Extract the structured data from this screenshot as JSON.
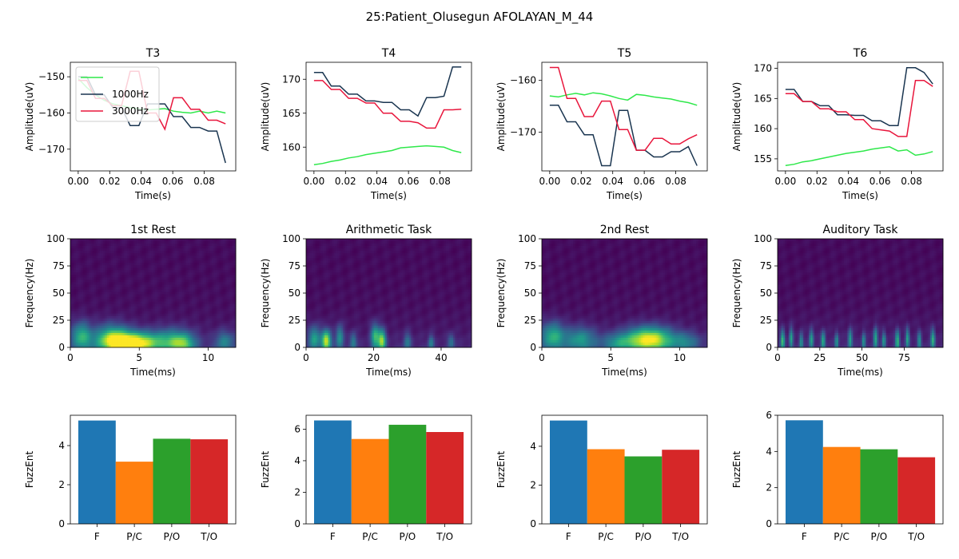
{
  "figure_title": "25:Patient_Olusegun AFOLAYAN_M_44",
  "chart_data": [
    {
      "id": "t3",
      "type": "line",
      "title": "T3",
      "xlabel": "Time(s)",
      "ylabel": "Amplitude(uV)",
      "xlim": [
        -0.005,
        0.1
      ],
      "ylim": [
        -176,
        -146
      ],
      "xticks": [
        0.0,
        0.02,
        0.04,
        0.06,
        0.08
      ],
      "xtick_labels": [
        "0.00",
        "0.02",
        "0.04",
        "0.06",
        "0.08"
      ],
      "yticks": [
        -150,
        -160,
        -170
      ],
      "ytick_labels": [
        "−150",
        "−160",
        "−170"
      ],
      "x": [
        0.0,
        0.0055,
        0.011,
        0.0165,
        0.022,
        0.0275,
        0.033,
        0.0385,
        0.044,
        0.0495,
        0.055,
        0.0605,
        0.066,
        0.0715,
        0.077,
        0.0825,
        0.088,
        0.0935
      ],
      "legend": {
        "position": "upper-left",
        "labels": [
          "",
          "1000Hz",
          "3000Hz"
        ]
      },
      "series": [
        {
          "name": "",
          "color": "#2ee84a",
          "values": [
            -150.5,
            -153,
            -155,
            -156.5,
            -157.5,
            -158,
            -158.5,
            -158.8,
            -159.2,
            -159.0,
            -158.8,
            -159.5,
            -159.8,
            -160.0,
            -159.5,
            -160.0,
            -159.5,
            -160.0
          ]
        },
        {
          "name": "1000Hz",
          "color": "#1a3550",
          "values": [
            -150.0,
            -150.0,
            -155.0,
            -155.0,
            -158.5,
            -158.5,
            -163.5,
            -163.5,
            -157.5,
            -157.5,
            -157.5,
            -161.0,
            -161.0,
            -164.0,
            -164.0,
            -165.0,
            -165.0,
            -173.8
          ]
        },
        {
          "name": "3000Hz",
          "color": "#e8163c",
          "values": [
            -151.0,
            -151.0,
            -156.0,
            -156.0,
            -158.0,
            -158.0,
            -148.5,
            -148.5,
            -160.0,
            -160.0,
            -164.5,
            -155.8,
            -155.8,
            -159.0,
            -159.0,
            -162.0,
            -162.0,
            -163.0
          ]
        }
      ]
    },
    {
      "id": "t4",
      "type": "line",
      "title": "T4",
      "xlabel": "Time(s)",
      "ylabel": "Amplitude(uV)",
      "xlim": [
        -0.005,
        0.1
      ],
      "ylim": [
        156.5,
        172.5
      ],
      "xticks": [
        0.0,
        0.02,
        0.04,
        0.06,
        0.08
      ],
      "xtick_labels": [
        "0.00",
        "0.02",
        "0.04",
        "0.06",
        "0.08"
      ],
      "yticks": [
        160,
        165,
        170
      ],
      "ytick_labels": [
        "160",
        "165",
        "170"
      ],
      "x": [
        0.0,
        0.0055,
        0.011,
        0.0165,
        0.022,
        0.0275,
        0.033,
        0.0385,
        0.044,
        0.0495,
        0.055,
        0.0605,
        0.066,
        0.0715,
        0.077,
        0.0825,
        0.088,
        0.0935
      ],
      "series": [
        {
          "name": "",
          "color": "#2ee84a",
          "values": [
            157.4,
            157.6,
            157.9,
            158.1,
            158.4,
            158.6,
            158.9,
            159.1,
            159.3,
            159.5,
            159.9,
            160.0,
            160.1,
            160.2,
            160.1,
            160.0,
            159.5,
            159.2
          ]
        },
        {
          "name": "1000Hz",
          "color": "#1a3550",
          "values": [
            171.0,
            171.0,
            169.0,
            169.0,
            167.8,
            167.8,
            166.8,
            166.8,
            166.6,
            166.6,
            165.5,
            165.5,
            164.6,
            167.3,
            167.3,
            167.5,
            171.8,
            171.8
          ]
        },
        {
          "name": "3000Hz",
          "color": "#e8163c",
          "values": [
            169.8,
            169.8,
            168.5,
            168.5,
            167.2,
            167.2,
            166.5,
            166.5,
            165.0,
            165.0,
            163.8,
            163.8,
            163.6,
            162.8,
            162.8,
            165.5,
            165.5,
            165.6
          ]
        }
      ]
    },
    {
      "id": "t5",
      "type": "line",
      "title": "T5",
      "xlabel": "Time(s)",
      "ylabel": "Amplitude(uV)",
      "xlim": [
        -0.005,
        0.1
      ],
      "ylim": [
        -177.5,
        -156.5
      ],
      "xticks": [
        0.0,
        0.02,
        0.04,
        0.06,
        0.08
      ],
      "xtick_labels": [
        "0.00",
        "0.02",
        "0.04",
        "0.06",
        "0.08"
      ],
      "yticks": [
        -160,
        -170
      ],
      "ytick_labels": [
        "−160",
        "−170"
      ],
      "x": [
        0.0,
        0.0055,
        0.011,
        0.0165,
        0.022,
        0.0275,
        0.033,
        0.0385,
        0.044,
        0.0495,
        0.055,
        0.0605,
        0.066,
        0.0715,
        0.077,
        0.0825,
        0.088,
        0.0935
      ],
      "series": [
        {
          "name": "",
          "color": "#2ee84a",
          "values": [
            -163.0,
            -163.2,
            -162.8,
            -162.5,
            -162.8,
            -162.4,
            -162.6,
            -163.0,
            -163.5,
            -163.8,
            -162.7,
            -162.9,
            -163.2,
            -163.4,
            -163.6,
            -164.0,
            -164.3,
            -164.8
          ]
        },
        {
          "name": "1000Hz",
          "color": "#1a3550",
          "values": [
            -164.8,
            -164.8,
            -168.0,
            -168.0,
            -170.5,
            -170.5,
            -176.5,
            -176.5,
            -165.8,
            -165.8,
            -173.5,
            -173.5,
            -174.8,
            -174.8,
            -173.8,
            -173.8,
            -172.8,
            -176.5
          ]
        },
        {
          "name": "3000Hz",
          "color": "#e8163c",
          "values": [
            -157.5,
            -157.5,
            -163.5,
            -163.5,
            -167.0,
            -167.0,
            -164.0,
            -164.0,
            -169.5,
            -169.5,
            -173.5,
            -173.5,
            -171.2,
            -171.2,
            -172.3,
            -172.3,
            -171.3,
            -170.5
          ]
        }
      ]
    },
    {
      "id": "t6",
      "type": "line",
      "title": "T6",
      "xlabel": "Time(s)",
      "ylabel": "Amplitude(uV)",
      "xlim": [
        -0.005,
        0.1
      ],
      "ylim": [
        153,
        171
      ],
      "xticks": [
        0.0,
        0.02,
        0.04,
        0.06,
        0.08
      ],
      "xtick_labels": [
        "0.00",
        "0.02",
        "0.04",
        "0.06",
        "0.08"
      ],
      "yticks": [
        155,
        160,
        165,
        170
      ],
      "ytick_labels": [
        "155",
        "160",
        "165",
        "170"
      ],
      "x": [
        0.0,
        0.0055,
        0.011,
        0.0165,
        0.022,
        0.0275,
        0.033,
        0.0385,
        0.044,
        0.0495,
        0.055,
        0.0605,
        0.066,
        0.0715,
        0.077,
        0.0825,
        0.088,
        0.0935
      ],
      "series": [
        {
          "name": "",
          "color": "#2ee84a",
          "values": [
            153.9,
            154.1,
            154.5,
            154.7,
            155.0,
            155.3,
            155.6,
            155.9,
            156.1,
            156.3,
            156.6,
            156.8,
            157.0,
            156.3,
            156.5,
            155.6,
            155.8,
            156.2
          ]
        },
        {
          "name": "1000Hz",
          "color": "#1a3550",
          "values": [
            166.5,
            166.5,
            164.5,
            164.5,
            163.8,
            163.8,
            162.3,
            162.3,
            162.2,
            162.2,
            161.3,
            161.3,
            160.5,
            160.5,
            170.1,
            170.1,
            169.3,
            167.4
          ]
        },
        {
          "name": "3000Hz",
          "color": "#e8163c",
          "values": [
            165.8,
            165.8,
            164.5,
            164.5,
            163.3,
            163.3,
            162.8,
            162.8,
            161.5,
            161.5,
            160.0,
            159.8,
            159.6,
            158.7,
            158.7,
            168.0,
            168.0,
            167.0
          ]
        }
      ]
    },
    {
      "id": "s1",
      "type": "heatmap",
      "title": "1st Rest",
      "xlabel": "Time(ms)",
      "ylabel": "Frequency(Hz)",
      "xlim": [
        0,
        12
      ],
      "ylim": [
        0,
        100
      ],
      "xticks": [
        0,
        5,
        10
      ],
      "xtick_labels": [
        "0",
        "5",
        "10"
      ],
      "yticks": [
        0,
        25,
        50,
        75,
        100
      ],
      "ytick_labels": [
        "0",
        "25",
        "50",
        "75",
        "100"
      ],
      "colormap": "viridis",
      "hotspots": [
        {
          "t": 0.8,
          "f": 10,
          "amp": 0.55,
          "st": 0.5,
          "sf": 9
        },
        {
          "t": 4.6,
          "f": 4,
          "amp": 1.0,
          "st": 1.3,
          "sf": 7
        },
        {
          "t": 3.0,
          "f": 8,
          "amp": 0.6,
          "st": 0.9,
          "sf": 9
        },
        {
          "t": 7.5,
          "f": 6,
          "amp": 0.45,
          "st": 1.0,
          "sf": 8
        },
        {
          "t": 8.2,
          "f": 3,
          "amp": 0.4,
          "st": 0.6,
          "sf": 6
        },
        {
          "t": 11.2,
          "f": 5,
          "amp": 0.35,
          "st": 0.5,
          "sf": 7
        }
      ]
    },
    {
      "id": "s2",
      "type": "heatmap",
      "title": "Arithmetic Task",
      "xlabel": "Time(ms)",
      "ylabel": "Frequency(Hz)",
      "xlim": [
        0,
        49
      ],
      "ylim": [
        0,
        100
      ],
      "xticks": [
        0,
        20,
        40
      ],
      "xtick_labels": [
        "0",
        "20",
        "40"
      ],
      "yticks": [
        0,
        25,
        50,
        75,
        100
      ],
      "ytick_labels": [
        "0",
        "25",
        "50",
        "75",
        "100"
      ],
      "colormap": "viridis",
      "hotspots": [
        {
          "t": 2.5,
          "f": 8,
          "amp": 0.5,
          "st": 1.2,
          "sf": 8
        },
        {
          "t": 6.0,
          "f": 6,
          "amp": 0.85,
          "st": 1.0,
          "sf": 7
        },
        {
          "t": 10.0,
          "f": 9,
          "amp": 0.45,
          "st": 0.8,
          "sf": 8
        },
        {
          "t": 14.0,
          "f": 5,
          "amp": 0.35,
          "st": 0.7,
          "sf": 6
        },
        {
          "t": 20.5,
          "f": 10,
          "amp": 0.6,
          "st": 0.9,
          "sf": 8
        },
        {
          "t": 22.5,
          "f": 6,
          "amp": 0.75,
          "st": 0.8,
          "sf": 7
        },
        {
          "t": 30.0,
          "f": 5,
          "amp": 0.3,
          "st": 0.8,
          "sf": 6
        },
        {
          "t": 37.0,
          "f": 4,
          "amp": 0.35,
          "st": 0.6,
          "sf": 5
        },
        {
          "t": 43.0,
          "f": 5,
          "amp": 0.3,
          "st": 0.7,
          "sf": 5
        }
      ]
    },
    {
      "id": "s3",
      "type": "heatmap",
      "title": "2nd Rest",
      "xlabel": "Time(ms)",
      "ylabel": "Frequency(Hz)",
      "xlim": [
        0,
        12
      ],
      "ylim": [
        0,
        100
      ],
      "xticks": [
        0,
        5,
        10
      ],
      "xtick_labels": [
        "0",
        "5",
        "10"
      ],
      "yticks": [
        0,
        25,
        50,
        75,
        100
      ],
      "ytick_labels": [
        "0",
        "25",
        "50",
        "75",
        "100"
      ],
      "colormap": "viridis",
      "hotspots": [
        {
          "t": 0.8,
          "f": 10,
          "amp": 0.55,
          "st": 0.6,
          "sf": 9
        },
        {
          "t": 2.8,
          "f": 7,
          "amp": 0.45,
          "st": 0.8,
          "sf": 8
        },
        {
          "t": 7.8,
          "f": 7,
          "amp": 0.95,
          "st": 1.2,
          "sf": 8
        },
        {
          "t": 5.5,
          "f": 4,
          "amp": 0.35,
          "st": 0.8,
          "sf": 6
        },
        {
          "t": 10.5,
          "f": 5,
          "amp": 0.3,
          "st": 0.7,
          "sf": 6
        }
      ]
    },
    {
      "id": "s4",
      "type": "heatmap",
      "title": "Auditory Task",
      "xlabel": "Time(ms)",
      "ylabel": "Frequency(Hz)",
      "xlim": [
        0,
        98
      ],
      "ylim": [
        0,
        100
      ],
      "xticks": [
        0,
        25,
        50,
        75
      ],
      "xtick_labels": [
        "0",
        "25",
        "50",
        "75"
      ],
      "yticks": [
        0,
        25,
        50,
        75,
        100
      ],
      "ytick_labels": [
        "0",
        "25",
        "50",
        "75",
        "100"
      ],
      "colormap": "viridis",
      "hotspots": [
        {
          "t": 3,
          "f": 6,
          "amp": 0.6,
          "st": 0.9,
          "sf": 7
        },
        {
          "t": 8,
          "f": 8,
          "amp": 0.5,
          "st": 0.8,
          "sf": 7
        },
        {
          "t": 14,
          "f": 5,
          "amp": 0.45,
          "st": 0.8,
          "sf": 6
        },
        {
          "t": 20,
          "f": 7,
          "amp": 0.5,
          "st": 0.9,
          "sf": 7
        },
        {
          "t": 27,
          "f": 6,
          "amp": 0.55,
          "st": 0.9,
          "sf": 6
        },
        {
          "t": 35,
          "f": 5,
          "amp": 0.45,
          "st": 0.8,
          "sf": 6
        },
        {
          "t": 43,
          "f": 7,
          "amp": 0.5,
          "st": 0.9,
          "sf": 7
        },
        {
          "t": 51,
          "f": 5,
          "amp": 0.45,
          "st": 0.8,
          "sf": 6
        },
        {
          "t": 58,
          "f": 8,
          "amp": 0.55,
          "st": 0.9,
          "sf": 7
        },
        {
          "t": 63,
          "f": 6,
          "amp": 0.45,
          "st": 0.8,
          "sf": 6
        },
        {
          "t": 71,
          "f": 6,
          "amp": 0.6,
          "st": 0.9,
          "sf": 7
        },
        {
          "t": 77,
          "f": 8,
          "amp": 0.5,
          "st": 0.8,
          "sf": 7
        },
        {
          "t": 84,
          "f": 6,
          "amp": 0.45,
          "st": 0.8,
          "sf": 6
        },
        {
          "t": 92,
          "f": 7,
          "amp": 0.55,
          "st": 0.9,
          "sf": 7
        }
      ]
    },
    {
      "id": "b1",
      "type": "bar",
      "title": "",
      "xlabel": "",
      "ylabel": "FuzzEnt",
      "categories": [
        "F",
        "P/C",
        "P/O",
        "T/O"
      ],
      "values": [
        5.28,
        3.18,
        4.35,
        4.32
      ],
      "colors": [
        "#1f77b4",
        "#ff7f0e",
        "#2ca02c",
        "#d62728"
      ],
      "ylim": [
        0,
        5.55
      ],
      "yticks": [
        0,
        2,
        4
      ],
      "ytick_labels": [
        "0",
        "2",
        "4"
      ]
    },
    {
      "id": "b2",
      "type": "bar",
      "title": "",
      "xlabel": "",
      "ylabel": "FuzzEnt",
      "categories": [
        "F",
        "P/C",
        "P/O",
        "T/O"
      ],
      "values": [
        6.55,
        5.38,
        6.28,
        5.82
      ],
      "colors": [
        "#1f77b4",
        "#ff7f0e",
        "#2ca02c",
        "#d62728"
      ],
      "ylim": [
        0,
        6.88
      ],
      "yticks": [
        0,
        2,
        4,
        6
      ],
      "ytick_labels": [
        "0",
        "2",
        "4",
        "6"
      ]
    },
    {
      "id": "b3",
      "type": "bar",
      "title": "",
      "xlabel": "",
      "ylabel": "FuzzEnt",
      "categories": [
        "F",
        "P/C",
        "P/O",
        "T/O"
      ],
      "values": [
        5.33,
        3.85,
        3.48,
        3.82
      ],
      "colors": [
        "#1f77b4",
        "#ff7f0e",
        "#2ca02c",
        "#d62728"
      ],
      "ylim": [
        0,
        5.6
      ],
      "yticks": [
        0,
        2,
        4
      ],
      "ytick_labels": [
        "0",
        "2",
        "4"
      ]
    },
    {
      "id": "b4",
      "type": "bar",
      "title": "",
      "xlabel": "",
      "ylabel": "FuzzEnt",
      "categories": [
        "F",
        "P/C",
        "P/O",
        "T/O"
      ],
      "values": [
        5.72,
        4.25,
        4.12,
        3.68
      ],
      "colors": [
        "#1f77b4",
        "#ff7f0e",
        "#2ca02c",
        "#d62728"
      ],
      "ylim": [
        0,
        6.0
      ],
      "yticks": [
        0,
        2,
        4,
        6
      ],
      "ytick_labels": [
        "0",
        "2",
        "4",
        "6"
      ]
    }
  ]
}
